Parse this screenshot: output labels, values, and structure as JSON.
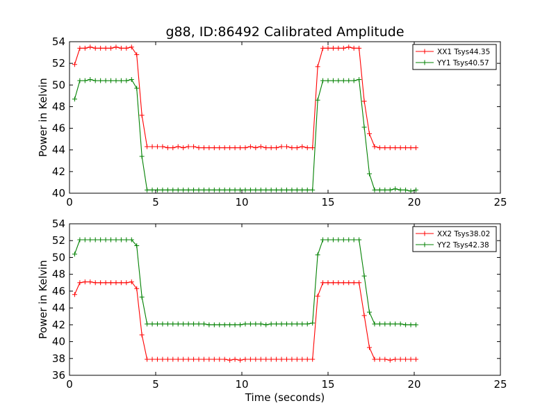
{
  "chart_data": [
    {
      "type": "line",
      "title": "g88, ID:86492 Calibrated Amplitude",
      "xlabel": "",
      "ylabel": "Power in Kelvin",
      "xlim": [
        0,
        25
      ],
      "ylim": [
        40,
        54
      ],
      "xticks": [
        "0",
        "5",
        "10",
        "15",
        "20",
        "25"
      ],
      "yticks": [
        "40",
        "42",
        "44",
        "46",
        "48",
        "50",
        "52",
        "54"
      ],
      "legend_position": "top-right",
      "grid": false,
      "x": [
        0.3,
        0.6,
        0.9,
        1.2,
        1.5,
        1.8,
        2.1,
        2.4,
        2.7,
        3.0,
        3.3,
        3.6,
        3.9,
        4.2,
        4.5,
        4.8,
        5.1,
        5.4,
        5.7,
        6.0,
        6.3,
        6.6,
        6.9,
        7.2,
        7.5,
        7.8,
        8.1,
        8.4,
        8.7,
        9.0,
        9.3,
        9.6,
        9.9,
        10.2,
        10.5,
        10.8,
        11.1,
        11.4,
        11.7,
        12.0,
        12.3,
        12.6,
        12.9,
        13.2,
        13.5,
        13.8,
        14.1,
        14.4,
        14.7,
        15.0,
        15.3,
        15.6,
        15.9,
        16.2,
        16.5,
        16.8,
        17.1,
        17.4,
        17.7,
        18.0,
        18.3,
        18.6,
        18.9,
        19.2,
        19.5,
        19.8,
        20.1
      ],
      "series": [
        {
          "name": "XX1 Tsys44.35",
          "color": "#ff0000",
          "values": [
            51.9,
            53.4,
            53.4,
            53.5,
            53.4,
            53.4,
            53.4,
            53.4,
            53.5,
            53.4,
            53.4,
            53.5,
            52.8,
            47.2,
            44.3,
            44.3,
            44.3,
            44.3,
            44.2,
            44.2,
            44.3,
            44.2,
            44.3,
            44.3,
            44.2,
            44.2,
            44.2,
            44.2,
            44.2,
            44.2,
            44.2,
            44.2,
            44.2,
            44.2,
            44.3,
            44.2,
            44.3,
            44.2,
            44.2,
            44.2,
            44.3,
            44.3,
            44.2,
            44.2,
            44.3,
            44.2,
            44.2,
            51.7,
            53.4,
            53.4,
            53.4,
            53.4,
            53.4,
            53.5,
            53.4,
            53.4,
            48.5,
            45.5,
            44.3,
            44.2,
            44.2,
            44.2,
            44.2,
            44.2,
            44.2,
            44.2,
            44.2
          ]
        },
        {
          "name": "YY1 Tsys40.57",
          "color": "#008000",
          "values": [
            48.7,
            50.4,
            50.4,
            50.5,
            50.4,
            50.4,
            50.4,
            50.4,
            50.4,
            50.4,
            50.4,
            50.5,
            49.7,
            43.4,
            40.3,
            40.3,
            40.3,
            40.3,
            40.3,
            40.3,
            40.3,
            40.3,
            40.3,
            40.3,
            40.3,
            40.3,
            40.3,
            40.3,
            40.3,
            40.3,
            40.3,
            40.3,
            40.3,
            40.3,
            40.3,
            40.3,
            40.3,
            40.3,
            40.3,
            40.3,
            40.3,
            40.3,
            40.3,
            40.3,
            40.3,
            40.3,
            40.3,
            48.6,
            50.4,
            50.4,
            50.4,
            50.4,
            50.4,
            50.4,
            50.4,
            50.5,
            46.1,
            41.8,
            40.3,
            40.3,
            40.3,
            40.3,
            40.4,
            40.3,
            40.3,
            40.2,
            40.3
          ]
        }
      ]
    },
    {
      "type": "line",
      "title": "",
      "xlabel": "Time (seconds)",
      "ylabel": "Power in Kelvin",
      "xlim": [
        0,
        25
      ],
      "ylim": [
        36,
        54
      ],
      "xticks": [
        "0",
        "5",
        "10",
        "15",
        "20",
        "25"
      ],
      "yticks": [
        "36",
        "38",
        "40",
        "42",
        "44",
        "46",
        "48",
        "50",
        "52",
        "54"
      ],
      "legend_position": "top-right",
      "grid": false,
      "x": [
        0.3,
        0.6,
        0.9,
        1.2,
        1.5,
        1.8,
        2.1,
        2.4,
        2.7,
        3.0,
        3.3,
        3.6,
        3.9,
        4.2,
        4.5,
        4.8,
        5.1,
        5.4,
        5.7,
        6.0,
        6.3,
        6.6,
        6.9,
        7.2,
        7.5,
        7.8,
        8.1,
        8.4,
        8.7,
        9.0,
        9.3,
        9.6,
        9.9,
        10.2,
        10.5,
        10.8,
        11.1,
        11.4,
        11.7,
        12.0,
        12.3,
        12.6,
        12.9,
        13.2,
        13.5,
        13.8,
        14.1,
        14.4,
        14.7,
        15.0,
        15.3,
        15.6,
        15.9,
        16.2,
        16.5,
        16.8,
        17.1,
        17.4,
        17.7,
        18.0,
        18.3,
        18.6,
        18.9,
        19.2,
        19.5,
        19.8,
        20.1
      ],
      "series": [
        {
          "name": "XX2 Tsys38.02",
          "color": "#ff0000",
          "values": [
            45.6,
            47.0,
            47.1,
            47.1,
            47.0,
            47.0,
            47.0,
            47.0,
            47.0,
            47.0,
            47.0,
            47.1,
            46.3,
            40.8,
            37.9,
            37.9,
            37.9,
            37.9,
            37.9,
            37.9,
            37.9,
            37.9,
            37.9,
            37.9,
            37.9,
            37.9,
            37.9,
            37.9,
            37.9,
            37.9,
            37.8,
            37.9,
            37.8,
            37.9,
            37.9,
            37.9,
            37.9,
            37.9,
            37.9,
            37.9,
            37.9,
            37.9,
            37.9,
            37.9,
            37.9,
            37.9,
            37.9,
            45.4,
            47.0,
            47.0,
            47.0,
            47.0,
            47.0,
            47.0,
            47.0,
            47.0,
            43.1,
            39.3,
            37.9,
            37.9,
            37.9,
            37.8,
            37.9,
            37.9,
            37.9,
            37.9,
            37.9
          ]
        },
        {
          "name": "YY2 Tsys42.38",
          "color": "#008000",
          "values": [
            50.4,
            52.1,
            52.1,
            52.1,
            52.1,
            52.1,
            52.1,
            52.1,
            52.1,
            52.1,
            52.1,
            52.1,
            51.4,
            45.3,
            42.1,
            42.1,
            42.1,
            42.1,
            42.1,
            42.1,
            42.1,
            42.1,
            42.1,
            42.1,
            42.1,
            42.1,
            42.0,
            42.0,
            42.0,
            42.0,
            42.0,
            42.0,
            42.0,
            42.1,
            42.1,
            42.1,
            42.1,
            42.0,
            42.1,
            42.1,
            42.1,
            42.1,
            42.1,
            42.1,
            42.1,
            42.1,
            42.2,
            50.3,
            52.1,
            52.1,
            52.1,
            52.1,
            52.1,
            52.1,
            52.1,
            52.1,
            47.8,
            43.5,
            42.1,
            42.1,
            42.1,
            42.1,
            42.1,
            42.1,
            42.0,
            42.0,
            42.0
          ]
        }
      ]
    }
  ]
}
